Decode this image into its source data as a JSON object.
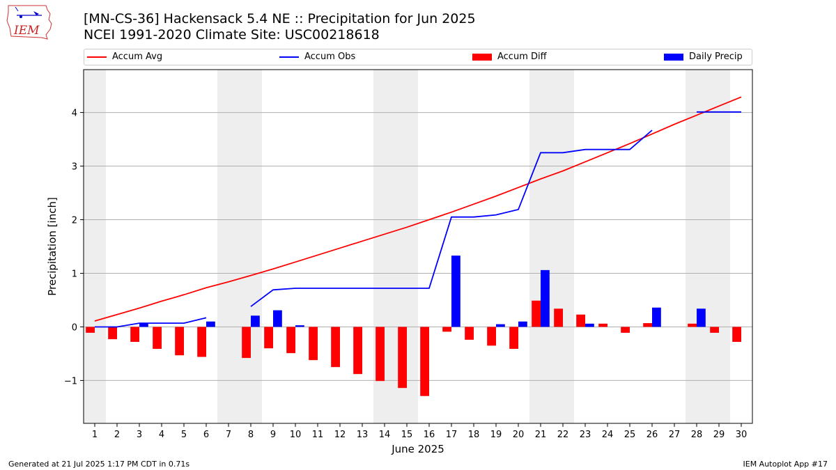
{
  "header": {
    "title_line1": "[MN-CS-36] Hackensack 5.4 NE :: Precipitation for Jun 2025",
    "title_line2": "NCEI 1991-2020 Climate Site: USC00218618",
    "logo_text": "IEM"
  },
  "footer": {
    "left": "Generated at 21 Jul 2025 1:17 PM CDT in 0.71s",
    "right": "IEM Autoplot App #17"
  },
  "colors": {
    "avg": "#ff0000",
    "obs": "#0000ff",
    "diff": "#ff0000",
    "daily": "#0000ff",
    "weekend": "#eeeeee",
    "grid": "#b0b0b0"
  },
  "chart_data": {
    "type": "bar",
    "xlabel": "June 2025",
    "ylabel": "Precipitation [inch]",
    "xlim": [
      0.5,
      30.5
    ],
    "ylim": [
      -1.8,
      4.8
    ],
    "yticks": [
      -1,
      0,
      1,
      2,
      3,
      4
    ],
    "ytick_labels": [
      "−1",
      "0",
      "1",
      "2",
      "3",
      "4"
    ],
    "grid": "y",
    "legend_position": "top",
    "x": [
      1,
      2,
      3,
      4,
      5,
      6,
      7,
      8,
      9,
      10,
      11,
      12,
      13,
      14,
      15,
      16,
      17,
      18,
      19,
      20,
      21,
      22,
      23,
      24,
      25,
      26,
      27,
      28,
      29,
      30
    ],
    "weekend_days": [
      1,
      7,
      8,
      14,
      15,
      21,
      22,
      28,
      29
    ],
    "series": [
      {
        "name": "Accum Avg",
        "type": "line",
        "values": [
          0.11,
          0.23,
          0.35,
          0.48,
          0.6,
          0.73,
          0.84,
          0.96,
          1.08,
          1.21,
          1.34,
          1.47,
          1.6,
          1.73,
          1.86,
          2.0,
          2.14,
          2.29,
          2.44,
          2.6,
          2.76,
          2.91,
          3.08,
          3.25,
          3.42,
          3.6,
          3.78,
          3.95,
          4.12,
          4.29
        ]
      },
      {
        "name": "Accum Obs",
        "type": "line",
        "values": [
          0.0,
          0.0,
          0.07,
          0.07,
          0.07,
          0.17,
          null,
          0.38,
          0.69,
          0.72,
          0.72,
          0.72,
          0.72,
          0.72,
          0.72,
          0.72,
          2.05,
          2.05,
          2.09,
          2.19,
          3.25,
          3.25,
          3.31,
          3.31,
          3.31,
          3.67,
          null,
          4.01,
          4.01,
          4.01
        ]
      },
      {
        "name": "Accum Diff",
        "type": "bar",
        "values": [
          -0.11,
          -0.23,
          -0.28,
          -0.41,
          -0.53,
          -0.56,
          null,
          -0.58,
          -0.4,
          -0.49,
          -0.62,
          -0.75,
          -0.88,
          -1.01,
          -1.14,
          -1.29,
          -0.09,
          -0.24,
          -0.35,
          -0.41,
          0.49,
          0.34,
          0.23,
          0.06,
          -0.11,
          0.07,
          null,
          0.06,
          -0.11,
          -0.28
        ]
      },
      {
        "name": "Daily Precip",
        "type": "bar",
        "values": [
          0,
          0,
          0.07,
          0,
          0,
          0.1,
          null,
          0.21,
          0.31,
          0.03,
          0,
          0,
          0,
          0,
          0,
          0,
          1.33,
          0,
          0.05,
          0.1,
          1.06,
          0,
          0.06,
          0,
          0,
          0.36,
          null,
          0.34,
          0,
          0
        ]
      }
    ]
  }
}
